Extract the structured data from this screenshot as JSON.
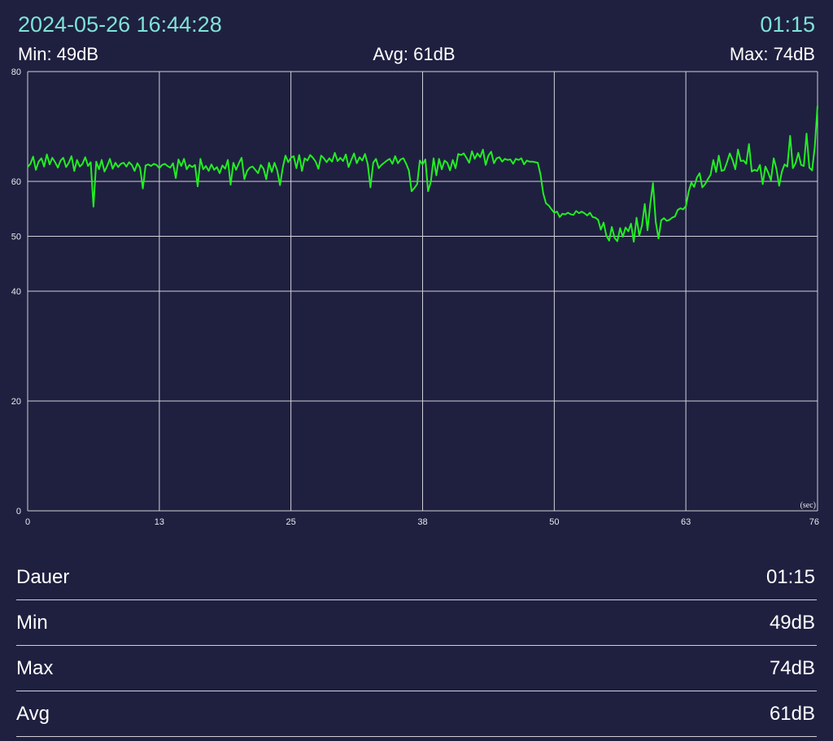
{
  "header": {
    "timestamp": "2024-05-26 16:44:28",
    "duration": "01:15"
  },
  "stats": {
    "min": "Min: 49dB",
    "avg": "Avg: 61dB",
    "max": "Max: 74dB"
  },
  "colors": {
    "background": "#1f2040",
    "accent": "#7fe3d6",
    "line": "#22ee22",
    "grid": "#d0d0d8"
  },
  "chart_data": {
    "type": "line",
    "x_unit_label": "(sec)",
    "xlim": [
      0,
      76
    ],
    "ylim": [
      0,
      80
    ],
    "x_ticks": [
      "0",
      "13",
      "25",
      "38",
      "50",
      "63",
      "76"
    ],
    "x_tick_values": [
      0,
      12.67,
      25.33,
      38,
      50.67,
      63.33,
      76
    ],
    "y_ticks": [
      "0",
      "20",
      "40",
      "50",
      "60",
      "80"
    ],
    "y_tick_values": [
      0,
      20,
      40,
      50,
      60,
      80
    ],
    "grid": true,
    "series": [
      {
        "values": [
          62.6,
          63.2,
          64.5,
          62.1,
          63.6,
          64.2,
          62.7,
          64.9,
          63.1,
          64.3,
          63.5,
          62.5,
          63.8,
          64.3,
          62.6,
          63.4,
          64.6,
          61.9,
          63.9,
          62.7,
          63.2,
          64.4,
          62.8,
          63.5,
          55.4,
          63.6,
          62.2,
          63.9,
          61.8,
          62.8,
          64.1,
          62.3,
          63.4,
          62.6,
          63.2,
          63.4,
          62.7,
          63.5,
          63.0,
          61.9,
          63.3,
          62.5,
          58.7,
          62.9,
          63.1,
          62.8,
          63.2,
          63.0,
          62.4,
          63.0,
          63.2,
          62.8,
          62.5,
          63.3,
          60.6,
          64.0,
          62.8,
          64.1,
          62.2,
          63.0,
          62.6,
          63.0,
          59.1,
          64.1,
          62.2,
          62.8,
          61.9,
          63.1,
          62.1,
          62.6,
          61.5,
          62.9,
          62.3,
          63.9,
          59.4,
          63.4,
          62.1,
          63.3,
          64.3,
          60.4,
          61.9,
          62.5,
          62.7,
          62.1,
          61.5,
          63.0,
          62.3,
          60.4,
          63.4,
          61.7,
          63.4,
          62.0,
          59.3,
          62.5,
          64.7,
          63.5,
          64.3,
          64.6,
          62.4,
          64.8,
          61.9,
          64.2,
          63.8,
          64.8,
          64.3,
          63.6,
          62.3,
          64.7,
          64.2,
          63.5,
          64.2,
          63.6,
          65.2,
          63.7,
          64.3,
          63.7,
          64.9,
          62.6,
          63.9,
          65.1,
          63.3,
          64.4,
          63.8,
          65.0,
          63.1,
          58.9,
          63.4,
          64.1,
          62.4,
          63.0,
          63.4,
          63.8,
          64.1,
          63.2,
          64.6,
          63.3,
          64.0,
          64.2,
          63.2,
          62.0,
          58.2,
          58.8,
          59.5,
          63.8,
          63.1,
          64.0,
          58.2,
          59.9,
          64.2,
          61.1,
          64.1,
          62.2,
          63.8,
          63.4,
          62.0,
          63.9,
          62.4,
          65.0,
          64.8,
          65.1,
          64.3,
          63.4,
          65.5,
          64.1,
          65.1,
          64.4,
          65.8,
          63.0,
          64.7,
          65.4,
          63.3,
          64.2,
          64.4,
          63.6,
          64.1,
          63.9,
          64.0,
          63.2,
          64.1,
          63.9,
          64.2,
          63.1,
          63.8,
          63.6,
          63.6,
          63.5,
          63.4,
          61.2,
          57.8,
          56.0,
          55.6,
          54.9,
          54.3,
          54.5,
          53.5,
          54.1,
          54.0,
          54.3,
          54.0,
          53.9,
          54.6,
          54.2,
          54.5,
          54.2,
          53.8,
          54.3,
          53.5,
          53.4,
          53.0,
          51.2,
          52.5,
          50.1,
          49.2,
          51.7,
          49.7,
          49.1,
          51.5,
          49.9,
          51.6,
          50.9,
          52.3,
          49.0,
          53.4,
          50.1,
          52.0,
          55.9,
          51.1,
          55.8,
          59.7,
          52.6,
          49.6,
          52.9,
          53.3,
          52.8,
          53.0,
          53.4,
          53.6,
          54.8,
          55.1,
          54.9,
          55.5,
          58.1,
          59.8,
          59.0,
          60.7,
          61.5,
          58.9,
          59.5,
          60.4,
          61.2,
          63.9,
          61.7,
          64.7,
          61.9,
          62.1,
          63.5,
          65.1,
          63.9,
          62.2,
          65.8,
          63.7,
          63.8,
          63.2,
          66.8,
          61.8,
          62.1,
          61.9,
          63.0,
          59.5,
          62.7,
          61.6,
          60.2,
          64.2,
          62.3,
          59.2,
          61.8,
          63.1,
          62.7,
          68.3,
          62.4,
          63.3,
          65.2,
          63.0,
          62.8,
          68.7,
          62.5,
          62.0,
          66.3,
          73.8
        ]
      }
    ]
  },
  "summary": [
    {
      "label": "Dauer",
      "value": "01:15"
    },
    {
      "label": "Min",
      "value": "49dB"
    },
    {
      "label": "Max",
      "value": "74dB"
    },
    {
      "label": "Avg",
      "value": "61dB"
    }
  ]
}
